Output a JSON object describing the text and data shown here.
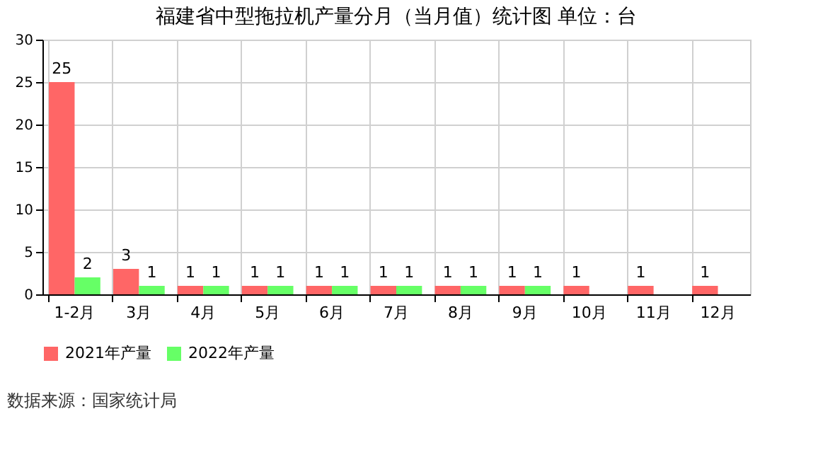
{
  "chart_data": {
    "type": "bar",
    "title": "福建省中型拖拉机产量分月（当月值）统计图 单位：台",
    "categories": [
      "1-2月",
      "3月",
      "4月",
      "5月",
      "6月",
      "7月",
      "8月",
      "9月",
      "10月",
      "11月",
      "12月"
    ],
    "series": [
      {
        "name": "2021年产量",
        "color": "#ff6666",
        "values": [
          25,
          3,
          1,
          1,
          1,
          1,
          1,
          1,
          1,
          1,
          1
        ]
      },
      {
        "name": "2022年产量",
        "color": "#66ff66",
        "values": [
          2,
          1,
          1,
          1,
          1,
          1,
          1,
          1,
          null,
          null,
          null
        ]
      }
    ],
    "ylim": [
      0,
      30
    ],
    "yticks": [
      0,
      5,
      10,
      15,
      20,
      25,
      30
    ],
    "grid": true,
    "legend": "bottom",
    "data_labels": true,
    "annotations": [
      "数据来源：国家统计局"
    ]
  }
}
